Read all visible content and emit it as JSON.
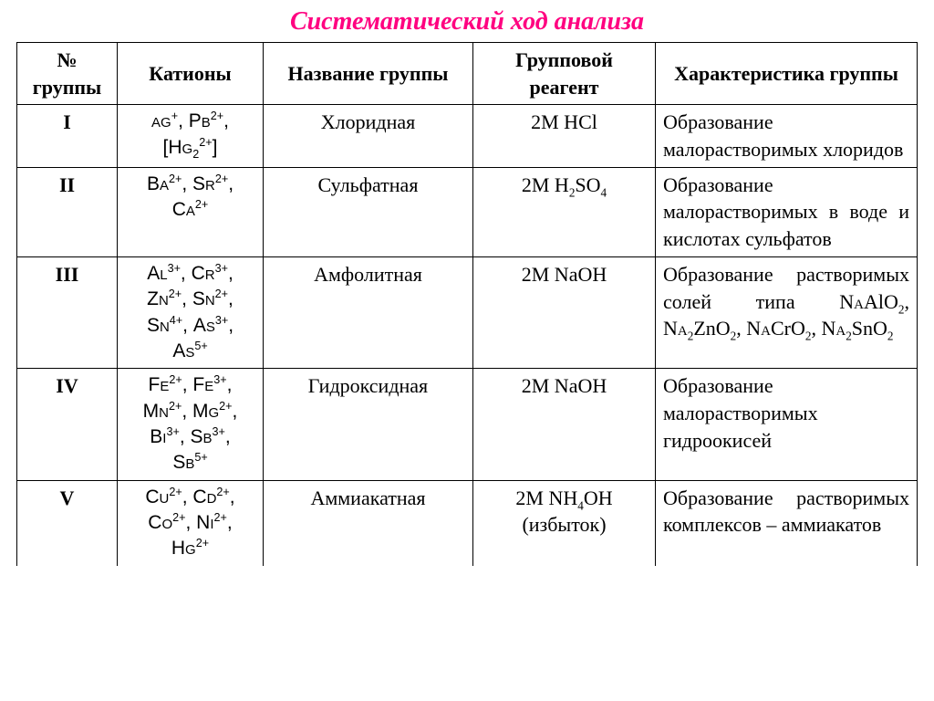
{
  "title": "Систематический ход анализа",
  "title_color": "#ff0080",
  "headers": {
    "group_no": "№ группы",
    "cations": "Катионы",
    "group_name": "Название группы",
    "reagent": "Групповой реагент",
    "char": "Характеристика группы"
  },
  "rows": {
    "r1": {
      "num": "I",
      "name": "Хлоридная",
      "char": "Образование малорастворимых хлоридов"
    },
    "r2": {
      "num": "II",
      "name": "Сульфатная",
      "char": "Образование малорастворимых в воде и кислотах сульфатов"
    },
    "r3": {
      "num": "III",
      "name": "Амфолитная"
    },
    "r4": {
      "num": "IV",
      "name": "Гидроксидная",
      "char": "Образование малорастворимых гидроокисей"
    },
    "r5": {
      "num": "V",
      "name": "Аммиакатная",
      "char": "Образование растворимых комплексов – аммиакатов"
    }
  }
}
